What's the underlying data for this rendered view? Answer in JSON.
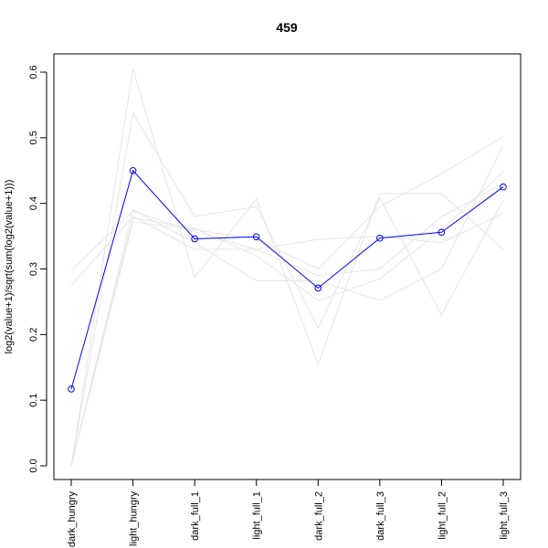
{
  "chart_data": {
    "type": "line",
    "title": "459",
    "xlabel": "",
    "ylabel": "log2(value+1)/sqrt(sum(log2(value+1)))",
    "categories": [
      "dark_hungry",
      "light_hungry",
      "dark_full_1",
      "light_full_1",
      "dark_full_2",
      "dark_full_3",
      "light_full_2",
      "light_full_3"
    ],
    "ylim": [
      0.0,
      0.6
    ],
    "yticks": [
      "0.0",
      "0.1",
      "0.2",
      "0.3",
      "0.4",
      "0.5",
      "0.6"
    ],
    "highlight_color": "#0000ff",
    "background_color": "#e6e6e6",
    "series": [
      {
        "values": [
          0.117,
          0.45,
          0.346,
          0.349,
          0.271,
          0.347,
          0.356,
          0.425
        ],
        "highlight": true
      },
      {
        "values": [
          0.0,
          0.605,
          0.287,
          0.407,
          0.155,
          0.415,
          0.415,
          0.33
        ],
        "highlight": false
      },
      {
        "values": [
          0.0,
          0.537,
          0.38,
          0.395,
          0.21,
          0.408,
          0.23,
          0.405
        ],
        "highlight": false
      },
      {
        "values": [
          0.298,
          0.388,
          0.357,
          0.33,
          0.345,
          0.35,
          0.34,
          0.385
        ],
        "highlight": false
      },
      {
        "values": [
          0.275,
          0.38,
          0.33,
          0.33,
          0.29,
          0.3,
          0.38,
          0.43
        ],
        "highlight": false
      },
      {
        "values": [
          0.0,
          0.372,
          0.36,
          0.345,
          0.3,
          0.395,
          0.445,
          0.502
        ],
        "highlight": false
      },
      {
        "values": [
          0.0,
          0.39,
          0.34,
          0.282,
          0.282,
          0.252,
          0.3,
          0.488
        ],
        "highlight": false
      },
      {
        "values": [
          0.0,
          0.378,
          0.362,
          0.32,
          0.252,
          0.285,
          0.36,
          0.448
        ],
        "highlight": false
      }
    ]
  }
}
